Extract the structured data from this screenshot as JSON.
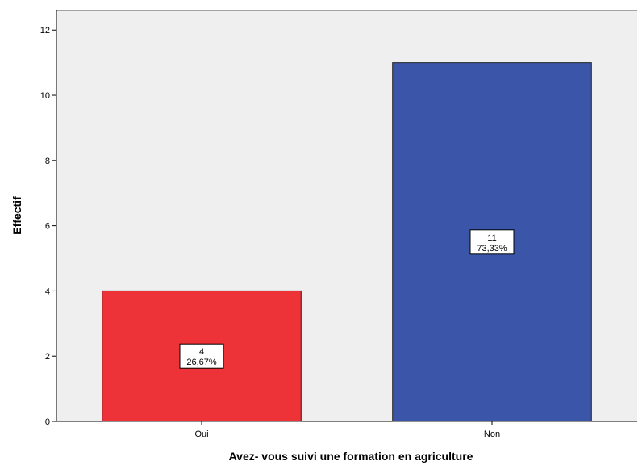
{
  "chart_data": {
    "type": "bar",
    "categories": [
      "Oui",
      "Non"
    ],
    "values": [
      4,
      11
    ],
    "percentages": [
      "26,67%",
      "73,33%"
    ],
    "bar_colors": [
      "#EE3338",
      "#3B55A8"
    ],
    "plot_background": "#EFEFEF",
    "xlabel": "Avez- vous suivi une formation en agriculture",
    "ylabel": "Effectif",
    "ylim": [
      0,
      12.6
    ],
    "yticks": [
      0,
      2,
      4,
      6,
      8,
      10,
      12
    ],
    "grid": false
  }
}
